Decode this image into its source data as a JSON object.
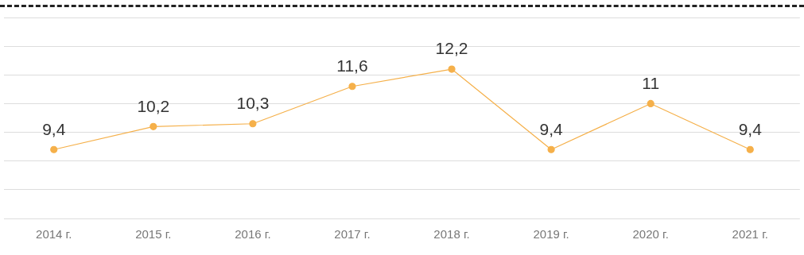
{
  "chart_data": {
    "type": "line",
    "categories": [
      "2014 г.",
      "2015 г.",
      "2016 г.",
      "2017 г.",
      "2018 г.",
      "2019 г.",
      "2020 г.",
      "2021 г."
    ],
    "series": [
      {
        "color": "#f5b04a",
        "values": [
          9.4,
          10.2,
          10.3,
          11.6,
          12.2,
          9.4,
          11,
          9.4
        ],
        "value_labels": [
          "9,4",
          "10,2",
          "10,3",
          "11,6",
          "12,2",
          "9,4",
          "11",
          "9,4"
        ]
      }
    ],
    "tick_labels": "x",
    "grid": "y",
    "marker": "circle",
    "line_style": "solid",
    "legend": false
  }
}
